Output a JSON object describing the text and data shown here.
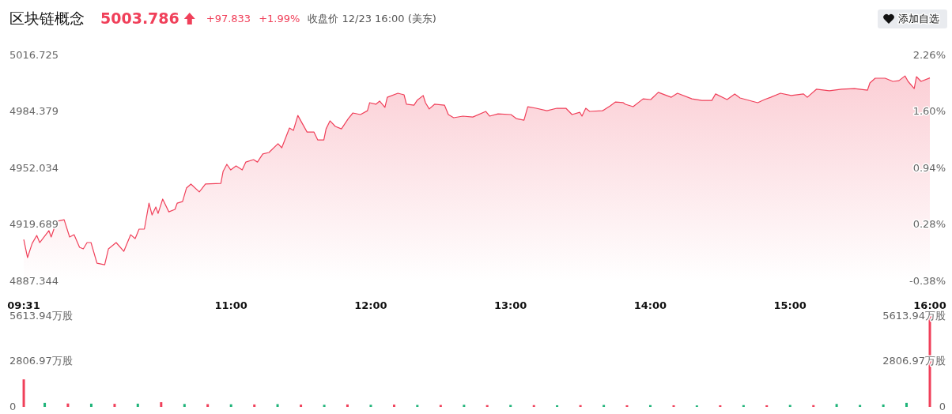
{
  "chart_data": [
    {
      "type": "area",
      "title": "区块链概念",
      "annotations": [
        "5003.786",
        "+97.833",
        "+1.99%",
        "收盘价 12/23 16:00 (美东)",
        "添加自选"
      ],
      "color": "#f0405a",
      "x": [
        9.517,
        9.544,
        9.577,
        9.61,
        9.631,
        9.697,
        9.713,
        9.752,
        9.806,
        9.845,
        9.877,
        9.916,
        9.943,
        9.97,
        9.998,
        10.041,
        10.096,
        10.123,
        10.178,
        10.233,
        10.282,
        10.314,
        10.342,
        10.38,
        10.413,
        10.435,
        10.462,
        10.478,
        10.511,
        10.555,
        10.599,
        10.615,
        10.653,
        10.681,
        10.713,
        10.773,
        10.817,
        10.927,
        10.943,
        10.97,
        10.998,
        11.036,
        11.08,
        11.106,
        11.161,
        11.189,
        11.227,
        11.271,
        11.336,
        11.363,
        11.418,
        11.446,
        11.478,
        11.544,
        11.593,
        11.62,
        11.664,
        11.68,
        11.708,
        11.746,
        11.79,
        11.839,
        11.872,
        11.926,
        11.976,
        11.992,
        12.036,
        12.063,
        12.101,
        12.118,
        12.194,
        12.238,
        12.255,
        12.309,
        12.331,
        12.375,
        12.391,
        12.418,
        12.456,
        12.527,
        12.555,
        12.593,
        12.659,
        12.73,
        12.823,
        12.85,
        12.91,
        13.003,
        13.041,
        13.096,
        13.123,
        13.183,
        13.26,
        13.331,
        13.396,
        13.44,
        13.495,
        13.511,
        13.538,
        13.566,
        13.658,
        13.713,
        13.751,
        13.806,
        13.822,
        13.877,
        13.948,
        14.003,
        14.057,
        14.15,
        14.194,
        14.298,
        14.369,
        14.44,
        14.467,
        14.549,
        14.604,
        14.642,
        14.768,
        14.817,
        14.861,
        14.931,
        15.008,
        15.096,
        15.123,
        15.188,
        15.281,
        15.369,
        15.461,
        15.554,
        15.571,
        15.609,
        15.68,
        15.735,
        15.778,
        15.822,
        15.844,
        15.888,
        15.904,
        15.937,
        16.0
      ],
      "values": [
        4911.3,
        4900.9,
        4909.0,
        4913.6,
        4909.5,
        4916.3,
        4912.7,
        4921.7,
        4922.6,
        4912.7,
        4914.0,
        4906.8,
        4905.9,
        4909.5,
        4909.5,
        4897.7,
        4896.8,
        4905.9,
        4909.5,
        4904.5,
        4914.0,
        4911.8,
        4917.2,
        4917.2,
        4932.1,
        4925.3,
        4929.9,
        4926.2,
        4934.4,
        4927.1,
        4928.5,
        4932.1,
        4933.0,
        4940.7,
        4943.0,
        4938.5,
        4943.0,
        4943.4,
        4950.2,
        4954.3,
        4951.1,
        4953.4,
        4951.1,
        4955.6,
        4957.0,
        4955.6,
        4960.2,
        4961.1,
        4966.1,
        4963.8,
        4975.1,
        4973.7,
        4982.3,
        4972.8,
        4972.8,
        4968.3,
        4968.3,
        4974.6,
        4979.2,
        4976.0,
        4974.6,
        4980.5,
        4983.7,
        4982.8,
        4985.0,
        4989.6,
        4988.7,
        4990.5,
        4986.9,
        4992.7,
        4995.0,
        4994.1,
        4988.7,
        4988.2,
        4990.9,
        4993.7,
        4989.6,
        4986.0,
        4988.7,
        4988.2,
        4982.8,
        4981.0,
        4981.9,
        4981.4,
        4984.6,
        4981.9,
        4983.2,
        4982.8,
        4980.5,
        4979.6,
        4987.3,
        4986.4,
        4985.0,
        4986.4,
        4986.4,
        4982.8,
        4984.1,
        4981.9,
        4986.4,
        4984.6,
        4985.0,
        4987.8,
        4990.0,
        4989.6,
        4988.7,
        4987.3,
        4991.8,
        4991.4,
        4995.5,
        4992.7,
        4995.0,
        4991.8,
        4990.9,
        4990.9,
        4994.6,
        4991.4,
        4994.6,
        4992.3,
        4989.6,
        4991.4,
        4992.7,
        4995.0,
        4993.7,
        4994.6,
        4992.7,
        4997.3,
        4996.4,
        4997.3,
        4997.7,
        4996.8,
        5000.9,
        5003.6,
        5003.6,
        5001.8,
        5002.2,
        5004.9,
        5001.8,
        4997.7,
        5004.5,
        5001.8,
        5003.8
      ],
      "xlim": [
        9.5167,
        16
      ],
      "xticks": [
        {
          "value": 9.5167,
          "label": "09:31"
        },
        {
          "value": 11,
          "label": "11:00"
        },
        {
          "value": 12,
          "label": "12:00"
        },
        {
          "value": 13,
          "label": "13:00"
        },
        {
          "value": 14,
          "label": "14:00"
        },
        {
          "value": 15,
          "label": "15:00"
        },
        {
          "value": 16,
          "label": "16:00"
        }
      ],
      "ylim": [
        4887.344,
        5016.725
      ],
      "yticks": [
        4887.344,
        4919.689,
        4952.034,
        4984.379,
        5016.725
      ],
      "y2lim": [
        -0.38,
        2.26
      ],
      "y2ticks": [
        {
          "value": -0.38,
          "label": "-0.38%"
        },
        {
          "value": 0.28,
          "label": "0.28%"
        },
        {
          "value": 0.94,
          "label": "0.94%"
        },
        {
          "value": 1.6,
          "label": "1.60%"
        },
        {
          "value": 2.26,
          "label": "2.26%"
        }
      ]
    },
    {
      "type": "bar",
      "tick_labels": "y",
      "x": [
        9.517,
        9.667,
        9.833,
        10.0,
        10.167,
        10.333,
        10.5,
        10.667,
        10.833,
        11.0,
        11.167,
        11.333,
        11.5,
        11.667,
        11.833,
        12.0,
        12.167,
        12.333,
        12.5,
        12.667,
        12.833,
        13.0,
        13.167,
        13.333,
        13.5,
        13.667,
        13.833,
        14.0,
        14.167,
        14.333,
        14.5,
        14.667,
        14.833,
        15.0,
        15.167,
        15.333,
        15.5,
        15.667,
        15.833,
        16.0
      ],
      "values": [
        1700,
        250,
        210,
        200,
        190,
        200,
        290,
        180,
        170,
        160,
        150,
        170,
        140,
        130,
        150,
        130,
        140,
        120,
        120,
        130,
        110,
        120,
        110,
        100,
        110,
        120,
        100,
        110,
        100,
        90,
        100,
        110,
        100,
        120,
        110,
        180,
        120,
        150,
        250,
        5613.94
      ],
      "colors": [
        "#f0405a",
        "#1fb47a",
        "#f0405a",
        "#1fb47a",
        "#f0405a",
        "#1fb47a",
        "#f0405a",
        "#1fb47a",
        "#f0405a",
        "#1fb47a",
        "#f0405a",
        "#1fb47a",
        "#f0405a",
        "#1fb47a",
        "#f0405a",
        "#1fb47a",
        "#f0405a",
        "#1fb47a",
        "#f0405a",
        "#1fb47a",
        "#f0405a",
        "#1fb47a",
        "#f0405a",
        "#1fb47a",
        "#f0405a",
        "#1fb47a",
        "#f0405a",
        "#1fb47a",
        "#f0405a",
        "#1fb47a",
        "#f0405a",
        "#1fb47a",
        "#f0405a",
        "#1fb47a",
        "#f0405a",
        "#1fb47a",
        "#1fb47a",
        "#1fb47a",
        "#1fb47a",
        "#f0405a"
      ],
      "xlim": [
        9.5167,
        16
      ],
      "ylim": [
        0,
        5613.94
      ],
      "yticks": [
        {
          "value": 0,
          "label": "0"
        },
        {
          "value": 2806.97,
          "label": "2806.97万股"
        },
        {
          "value": 5613.94,
          "label": "5613.94万股"
        }
      ],
      "y2lim": [
        0,
        5613.94
      ],
      "y2ticks": [
        {
          "value": 0,
          "label": "0"
        },
        {
          "value": 2806.97,
          "label": "2806.97万股"
        },
        {
          "value": 5613.94,
          "label": "5613.94万股"
        }
      ]
    }
  ]
}
